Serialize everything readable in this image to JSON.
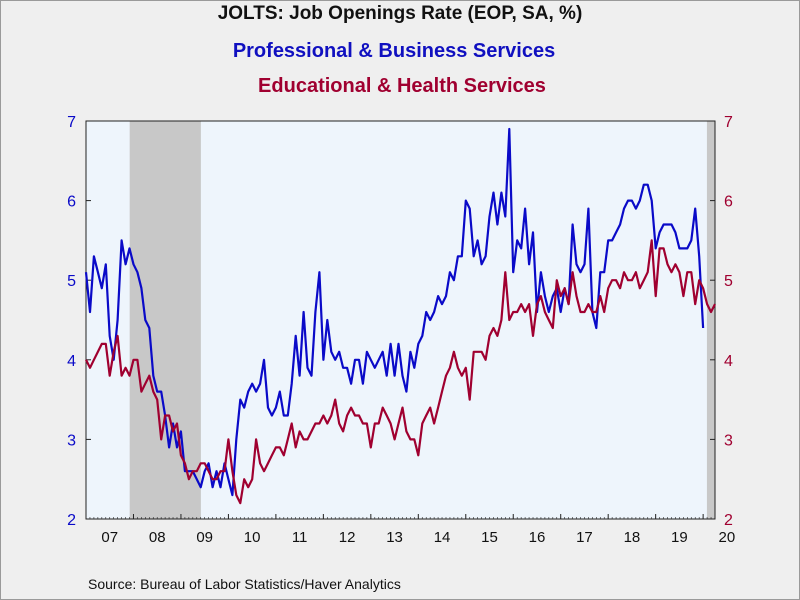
{
  "title": "JOLTS: Job Openings Rate (EOP, SA, %)",
  "source": "Source:  Bureau of Labor Statistics/Haver Analytics",
  "colors": {
    "background": "#efefef",
    "plot_area": "#eef5fc",
    "recession": "#c8c8c8",
    "series_1": "#0a0ac8",
    "series_2": "#a00030",
    "axis_text": "#1010a0"
  },
  "chart_data": {
    "type": "line",
    "title": "JOLTS: Job Openings Rate (EOP, SA, %)",
    "x_tick_labels": [
      "07",
      "08",
      "09",
      "10",
      "11",
      "12",
      "13",
      "14",
      "15",
      "16",
      "17",
      "18",
      "19",
      "20"
    ],
    "xlim": [
      2007.0,
      2020.25
    ],
    "ylim_left": [
      2,
      7
    ],
    "ylim_right": [
      2,
      7
    ],
    "y_ticks": [
      2,
      3,
      4,
      5,
      6,
      7
    ],
    "recession_shading": [
      [
        2007.92,
        2009.42
      ],
      [
        2020.08,
        2020.25
      ]
    ],
    "series": [
      {
        "name": "Professional & Business Services",
        "axis": "left",
        "color": "#0a0ac8",
        "start": 2007.0,
        "step_months": 1,
        "values": [
          5.1,
          4.6,
          5.3,
          5.1,
          4.9,
          5.2,
          4.3,
          4.0,
          4.5,
          5.5,
          5.2,
          5.4,
          5.2,
          5.1,
          4.9,
          4.5,
          4.4,
          3.8,
          3.6,
          3.6,
          3.3,
          2.9,
          3.2,
          2.9,
          3.1,
          2.6,
          2.6,
          2.6,
          2.5,
          2.4,
          2.6,
          2.7,
          2.4,
          2.6,
          2.4,
          2.7,
          2.5,
          2.3,
          3.0,
          3.5,
          3.4,
          3.6,
          3.7,
          3.6,
          3.7,
          4.0,
          3.4,
          3.3,
          3.4,
          3.6,
          3.3,
          3.3,
          3.7,
          4.3,
          3.8,
          4.6,
          3.9,
          3.8,
          4.6,
          5.1,
          4.0,
          4.5,
          4.1,
          4.0,
          4.1,
          3.9,
          3.9,
          3.7,
          4.0,
          4.0,
          3.7,
          4.1,
          4.0,
          3.9,
          4.0,
          4.1,
          3.8,
          4.2,
          3.8,
          4.2,
          3.8,
          3.6,
          4.1,
          3.9,
          4.2,
          4.3,
          4.6,
          4.5,
          4.6,
          4.8,
          4.7,
          4.8,
          5.1,
          5.0,
          5.3,
          5.3,
          6.0,
          5.9,
          5.3,
          5.5,
          5.2,
          5.3,
          5.8,
          6.1,
          5.7,
          6.1,
          5.8,
          6.9,
          5.1,
          5.5,
          5.4,
          5.9,
          5.2,
          5.6,
          4.6,
          5.1,
          4.8,
          4.6,
          4.8,
          4.9,
          4.6,
          4.9,
          4.7,
          5.7,
          5.2,
          5.1,
          5.2,
          5.9,
          4.6,
          4.4,
          5.1,
          5.1,
          5.5,
          5.5,
          5.6,
          5.7,
          5.9,
          6.0,
          6.0,
          5.9,
          6.0,
          6.2,
          6.2,
          6.0,
          5.4,
          5.6,
          5.7,
          5.7,
          5.7,
          5.6,
          5.4,
          5.4,
          5.4,
          5.5,
          5.9,
          5.3,
          4.4
        ]
      },
      {
        "name": "Educational & Health Services",
        "axis": "right",
        "color": "#a00030",
        "start": 2007.0,
        "step_months": 1,
        "values": [
          4.0,
          3.9,
          4.0,
          4.1,
          4.2,
          4.2,
          3.8,
          4.1,
          4.3,
          3.8,
          3.9,
          3.8,
          4.0,
          4.0,
          3.6,
          3.7,
          3.8,
          3.6,
          3.5,
          3.0,
          3.3,
          3.3,
          3.1,
          3.2,
          2.8,
          2.7,
          2.5,
          2.6,
          2.6,
          2.7,
          2.7,
          2.6,
          2.5,
          2.5,
          2.6,
          2.6,
          3.0,
          2.6,
          2.3,
          2.2,
          2.5,
          2.4,
          2.5,
          3.0,
          2.7,
          2.6,
          2.7,
          2.8,
          2.9,
          2.9,
          2.8,
          3.0,
          3.2,
          2.9,
          3.1,
          3.0,
          3.0,
          3.1,
          3.2,
          3.2,
          3.3,
          3.2,
          3.3,
          3.5,
          3.2,
          3.1,
          3.3,
          3.4,
          3.3,
          3.3,
          3.2,
          3.2,
          2.9,
          3.2,
          3.2,
          3.4,
          3.3,
          3.2,
          3.0,
          3.2,
          3.4,
          3.1,
          3.0,
          3.0,
          2.8,
          3.2,
          3.3,
          3.4,
          3.2,
          3.4,
          3.6,
          3.8,
          3.9,
          4.1,
          3.9,
          3.8,
          3.9,
          3.5,
          4.1,
          4.1,
          4.1,
          4.0,
          4.3,
          4.4,
          4.3,
          4.5,
          5.1,
          4.5,
          4.6,
          4.6,
          4.7,
          4.6,
          4.7,
          4.3,
          4.7,
          4.8,
          4.6,
          4.5,
          4.4,
          5.0,
          4.8,
          4.9,
          4.7,
          5.1,
          4.8,
          4.6,
          4.6,
          4.7,
          4.6,
          4.6,
          4.8,
          4.6,
          4.9,
          5.0,
          5.0,
          4.9,
          5.1,
          5.0,
          5.0,
          5.1,
          4.9,
          5.0,
          5.1,
          5.5,
          4.8,
          5.4,
          5.4,
          5.2,
          5.1,
          5.2,
          5.1,
          4.8,
          5.1,
          5.1,
          4.7,
          5.0,
          4.9,
          4.7,
          4.6,
          4.7
        ]
      }
    ]
  }
}
